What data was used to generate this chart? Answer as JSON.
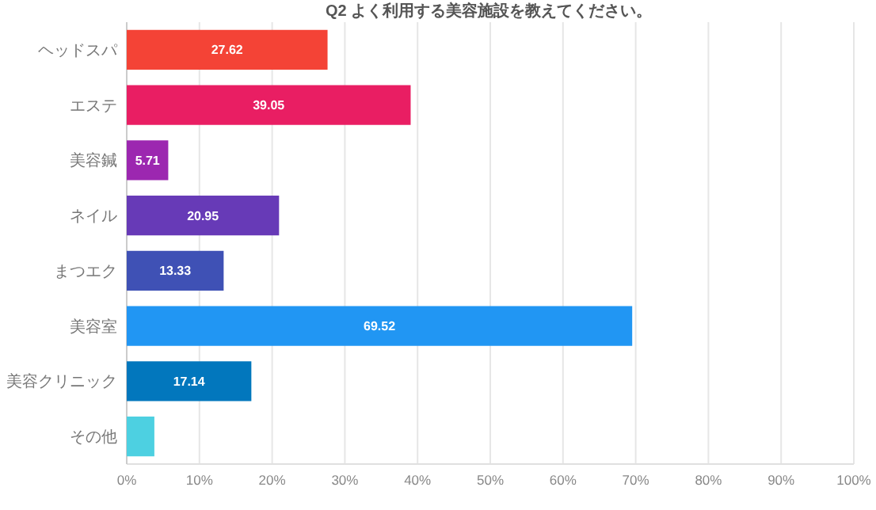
{
  "chart_data": {
    "type": "bar",
    "orientation": "horizontal",
    "title": "Q2 よく利用する美容施設を教えてください。",
    "categories": [
      "ヘッドスパ",
      "エステ",
      "美容鍼",
      "ネイル",
      "まつエク",
      "美容室",
      "美容クリニック",
      "その他"
    ],
    "values": [
      27.62,
      39.05,
      5.71,
      20.95,
      13.33,
      69.52,
      17.14,
      3.8
    ],
    "value_labels": [
      "27.62",
      "39.05",
      "5.71",
      "20.95",
      "13.33",
      "69.52",
      "17.14",
      null
    ],
    "colors": [
      "#f44336",
      "#e91e63",
      "#9c27b0",
      "#673ab7",
      "#3f51b5",
      "#2196f3",
      "#0277bd",
      "#4dd0e1"
    ],
    "xlim": [
      0,
      100
    ],
    "xticks": [
      {
        "value": 0,
        "label": "0%"
      },
      {
        "value": 10,
        "label": "10%"
      },
      {
        "value": 20,
        "label": "20%"
      },
      {
        "value": 30,
        "label": "30%"
      },
      {
        "value": 40,
        "label": "40%"
      },
      {
        "value": 50,
        "label": "50%"
      },
      {
        "value": 60,
        "label": "60%"
      },
      {
        "value": 70,
        "label": "70%"
      },
      {
        "value": 80,
        "label": "80%"
      },
      {
        "value": 90,
        "label": "90%"
      },
      {
        "value": 100,
        "label": "100%"
      }
    ],
    "grid": "x"
  }
}
